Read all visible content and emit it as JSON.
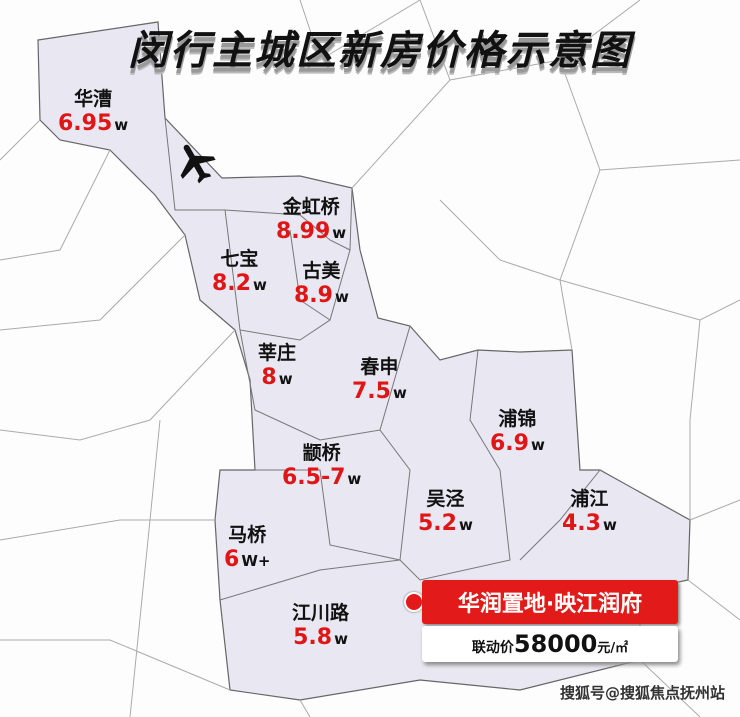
{
  "title": "闵行主城区新房价格示意图",
  "colors": {
    "highlight_region": "#e9e7f1",
    "price": "#e01515",
    "callout": "#e31a1a"
  },
  "icons": {
    "airport": "airplane-icon",
    "location": "red-dot-marker"
  },
  "areas": [
    {
      "name": "华漕",
      "price": "6.95",
      "unit": "w"
    },
    {
      "name": "金虹桥",
      "price": "8.99",
      "unit": "w"
    },
    {
      "name": "七宝",
      "price": "8.2",
      "unit": "w"
    },
    {
      "name": "古美",
      "price": "8.9",
      "unit": "w"
    },
    {
      "name": "莘庄",
      "price": "8",
      "unit": "w"
    },
    {
      "name": "春申",
      "price": "7.5",
      "unit": "w"
    },
    {
      "name": "颛桥",
      "price": "6.5-7",
      "unit": "w"
    },
    {
      "name": "浦锦",
      "price": "6.9",
      "unit": "w"
    },
    {
      "name": "吴泾",
      "price": "5.2",
      "unit": "w"
    },
    {
      "name": "浦江",
      "price": "4.3",
      "unit": "w"
    },
    {
      "name": "马桥",
      "price": "6",
      "unit": "W+"
    },
    {
      "name": "江川路",
      "price": "5.8",
      "unit": "w"
    }
  ],
  "callout": {
    "project": "华润置地·映江润府",
    "price_label": "联动价",
    "price_value": "58000",
    "price_unit": "元/㎡"
  },
  "watermark": "搜狐号@搜狐焦点抚州站"
}
